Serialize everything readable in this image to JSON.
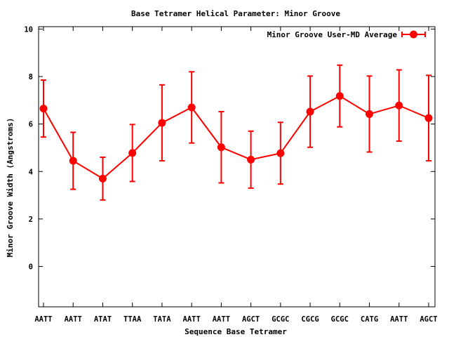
{
  "chart_data": {
    "type": "line",
    "title": "Base Tetramer Helical Parameter: Minor Groove",
    "xlabel": "Sequence Base Tetramer",
    "ylabel": "Minor Groove Width (Angstroms)",
    "ylim": [
      -1.7,
      10.1
    ],
    "yticks": [
      0,
      2,
      4,
      6,
      8,
      10
    ],
    "categories": [
      "AATT",
      "AATT",
      "ATAT",
      "TTAA",
      "TATA",
      "AATT",
      "AATT",
      "AGCT",
      "GCGC",
      "CGCG",
      "GCGC",
      "CATG",
      "AATT",
      "AGCT"
    ],
    "grid": false,
    "legend_position": "top-right",
    "colors": {
      "series": "#ff0000",
      "axis": "#000000",
      "background": "#ffffff"
    },
    "series": [
      {
        "name": "Minor Groove User-MD Average",
        "values": [
          6.65,
          4.45,
          3.7,
          4.78,
          6.05,
          6.7,
          5.02,
          4.5,
          4.77,
          6.52,
          7.18,
          6.42,
          6.78,
          6.25
        ],
        "errors": [
          1.2,
          1.2,
          0.9,
          1.2,
          1.6,
          1.5,
          1.5,
          1.2,
          1.3,
          1.5,
          1.3,
          1.6,
          1.5,
          1.8
        ]
      }
    ]
  }
}
